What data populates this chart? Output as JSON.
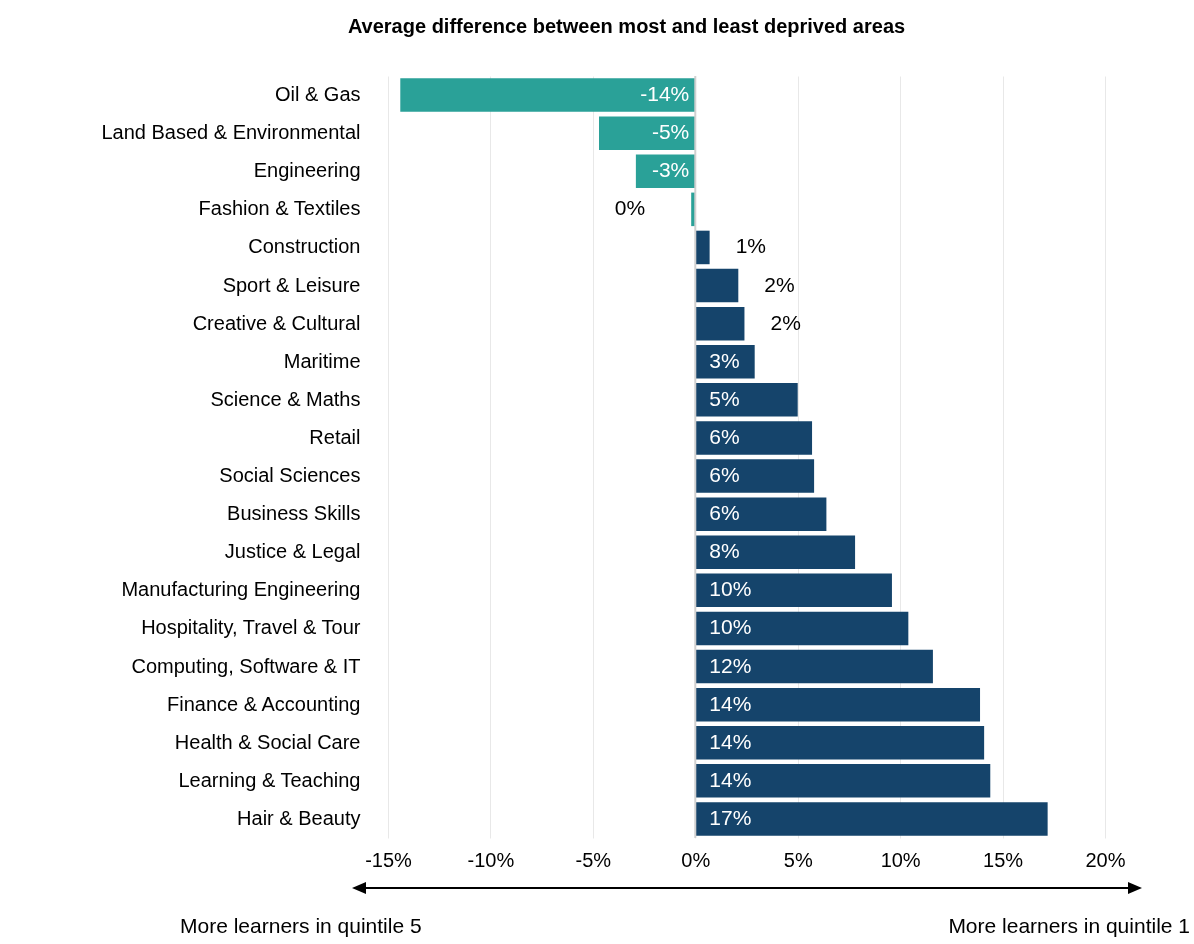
{
  "chart_data": {
    "type": "bar",
    "orientation": "horizontal",
    "title": "Average difference between most and least deprived areas",
    "categories": [
      "Oil & Gas",
      "Land Based & Environmental",
      "Engineering",
      "Fashion & Textiles",
      "Construction",
      "Sport & Leisure",
      "Creative & Cultural",
      "Maritime",
      "Science & Maths",
      "Retail",
      "Social Sciences",
      "Business Skills",
      "Justice & Legal",
      "Manufacturing Engineering",
      "Hospitality, Travel & Tour",
      "Computing, Software & IT",
      "Finance & Accounting",
      "Health & Social Care",
      "Learning & Teaching",
      "Hair & Beauty"
    ],
    "values": [
      -14.4,
      -4.7,
      -2.9,
      -0.2,
      0.7,
      2.1,
      2.4,
      2.9,
      5.0,
      5.7,
      5.8,
      6.4,
      7.8,
      9.6,
      10.4,
      11.6,
      13.9,
      14.1,
      14.4,
      17.2
    ],
    "value_labels": [
      "-14%",
      "-5%",
      "-3%",
      "0%",
      "1%",
      "2%",
      "2%",
      "3%",
      "5%",
      "6%",
      "6%",
      "6%",
      "8%",
      "10%",
      "10%",
      "12%",
      "14%",
      "14%",
      "14%",
      "17%"
    ],
    "colors": [
      "#2aa198",
      "#2aa198",
      "#2aa198",
      "#2aa198",
      "#15446b",
      "#15446b",
      "#15446b",
      "#15446b",
      "#15446b",
      "#15446b",
      "#15446b",
      "#15446b",
      "#15446b",
      "#15446b",
      "#15446b",
      "#15446b",
      "#15446b",
      "#15446b",
      "#15446b",
      "#15446b"
    ],
    "xlim": [
      -15,
      20
    ],
    "xticks": [
      {
        "value": -15,
        "label": "-15%"
      },
      {
        "value": -10,
        "label": "-10%"
      },
      {
        "value": -5,
        "label": "-5%"
      },
      {
        "value": 0,
        "label": "0%"
      },
      {
        "value": 5,
        "label": "5%"
      },
      {
        "value": 10,
        "label": "10%"
      },
      {
        "value": 15,
        "label": "15%"
      },
      {
        "value": 20,
        "label": "20%"
      }
    ],
    "grid": "x",
    "annotations": [
      "More learners in quintile 5",
      "More learners in quintile 1"
    ]
  }
}
